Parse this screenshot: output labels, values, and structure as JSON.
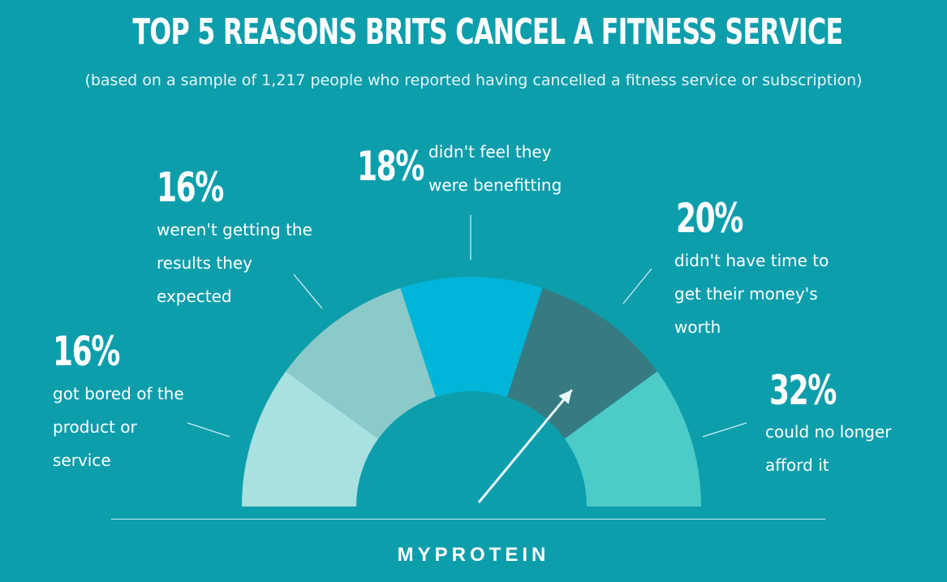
{
  "title": "TOP 5 REASONS BRITS CANCEL A FITNESS SERVICE",
  "subtitle": "(based on a sample of 1,217 people who reported having cancelled a fitness service or subscription)",
  "brand": "MYPROTEIN",
  "colors": {
    "background": "#0d9eac",
    "segments": [
      "#a9e1e0",
      "#8ccaca",
      "#00b5d8",
      "#377b82",
      "#4ccbc9"
    ],
    "pointer": "#e8f7f9"
  },
  "chart_data": {
    "type": "gauge",
    "gauge_level_percent": 32,
    "series": [
      {
        "value": 16,
        "label": "16%",
        "lines": [
          "got bored of the",
          "product or",
          "service"
        ]
      },
      {
        "value": 16,
        "label": "16%",
        "lines": [
          "weren't getting the",
          "results they",
          "expected"
        ]
      },
      {
        "value": 18,
        "label": "18%",
        "lines": [
          "didn't feel they",
          "were benefitting"
        ]
      },
      {
        "value": 20,
        "label": "20%",
        "lines": [
          "didn't have time to",
          "get their money's",
          "worth"
        ]
      },
      {
        "value": 32,
        "label": "32%",
        "lines": [
          "could no longer",
          "afford it"
        ]
      }
    ]
  }
}
